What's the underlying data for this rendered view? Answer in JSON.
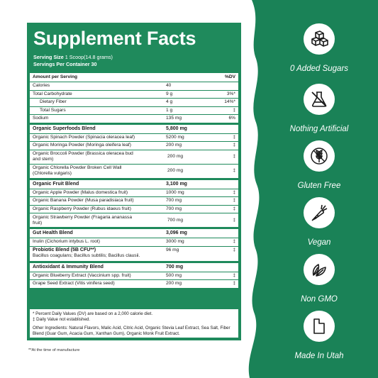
{
  "facts": {
    "title": "Supplement Facts",
    "serving_size_label": "Serving Size",
    "serving_size_value": "1 Scoop(14.8 grams)",
    "servings_label": "Servings Per Container",
    "servings_value": "30",
    "header": {
      "amount": "Amount per Serving",
      "dv": "%DV"
    },
    "nutrients": [
      {
        "name": "Calories",
        "amount": "40",
        "dv": ""
      },
      {
        "name": "Total Carbohydrate",
        "amount": "9 g",
        "dv": "3%*"
      },
      {
        "name": "Dietary Fiber",
        "amount": "4 g",
        "dv": "14%*"
      },
      {
        "name": "Total Sugars",
        "amount": "1 g",
        "dv": "‡"
      },
      {
        "name": "Sodium",
        "amount": "135 mg",
        "dv": "6%"
      }
    ],
    "blends": [
      {
        "name": "Organic Superfoods Blend",
        "amount": "5,800 mg",
        "items": [
          {
            "name": "Organic Spinach Powder (Spinacia oleracea leaf)",
            "amount": "5200 mg",
            "dv": "‡"
          },
          {
            "name": "Organic Moringa Powder (Moringa oleifera leaf)",
            "amount": "200 mg",
            "dv": "‡"
          },
          {
            "name": "Organic Broccoli Powder (Brassica oleracea bud and stem)",
            "amount": "200 mg",
            "dv": "‡"
          },
          {
            "name": "Organic Chlorella Powder Broken Cell Wall (Chlorella vulgaris)",
            "amount": "200 mg",
            "dv": "‡"
          }
        ]
      },
      {
        "name": "Organic Fruit Blend",
        "amount": "3,100 mg",
        "items": [
          {
            "name": "Organic Apple Powder (Malus domestica fruit)",
            "amount": "1000 mg",
            "dv": "‡"
          },
          {
            "name": "Organic Banana Powder (Musa paradisiaca fruit)",
            "amount": "700 mg",
            "dv": "‡"
          },
          {
            "name": "Organic Raspberry Powder (Rubus idaeus fruit)",
            "amount": "700 mg",
            "dv": "‡"
          },
          {
            "name": "Organic Strawberry Powder (Fragaria ananassa fruit)",
            "amount": "700 mg",
            "dv": "‡"
          }
        ]
      },
      {
        "name": "Gut Health Blend",
        "amount": "3,096 mg",
        "items": [
          {
            "name": "Inulin (Cichorium intybus L. root)",
            "amount": "3000 mg",
            "dv": "‡"
          }
        ]
      }
    ],
    "probiotic": {
      "name": "Probiotic Blend (5B CFU**)",
      "detail": "Bacillus coagulans; Bacillus subtilis; Bacillus clausii.",
      "amount": "96 mg",
      "dv": "‡"
    },
    "antioxidant": {
      "name": "Antioxidant & Immunity Blend",
      "amount": "700 mg",
      "items": [
        {
          "name": "Organic Blueberry Extract (Vaccinium spp. fruit)",
          "amount": "500 mg",
          "dv": "‡"
        },
        {
          "name": "Grape Seed Extract (Vitis vinifera seed)",
          "amount": "200 mg",
          "dv": "‡"
        }
      ]
    },
    "footnote_1": "* Percent Daily Values (DV) are based on a 2,000 calorie diet.",
    "footnote_2": "‡ Daily Value not established.",
    "other_ingredients": "Other Ingredients: Natural Flavors, Malic Acid, Citric Acid, Organic Stevia Leaf Extract, Sea Salt, Fiber Blend (Guar Gum, Acacia Gum, Xanthan Gum), Organic Monk Fruit Extract.",
    "manufacture_note": "**At the time of manufacture"
  },
  "badges": [
    {
      "label": "0 Added Sugars",
      "icon": "sugar-cubes-icon"
    },
    {
      "label": "Nothing Artificial",
      "icon": "flask-icon"
    },
    {
      "label": "Gluten Free",
      "icon": "wheat-icon"
    },
    {
      "label": "Vegan",
      "icon": "carrot-icon"
    },
    {
      "label": "Non GMO",
      "icon": "leaves-icon"
    },
    {
      "label": "Made In Utah",
      "icon": "utah-state-icon"
    }
  ],
  "colors": {
    "green": "#1f8a5c",
    "dark_green": "#17744b",
    "white": "#ffffff"
  }
}
